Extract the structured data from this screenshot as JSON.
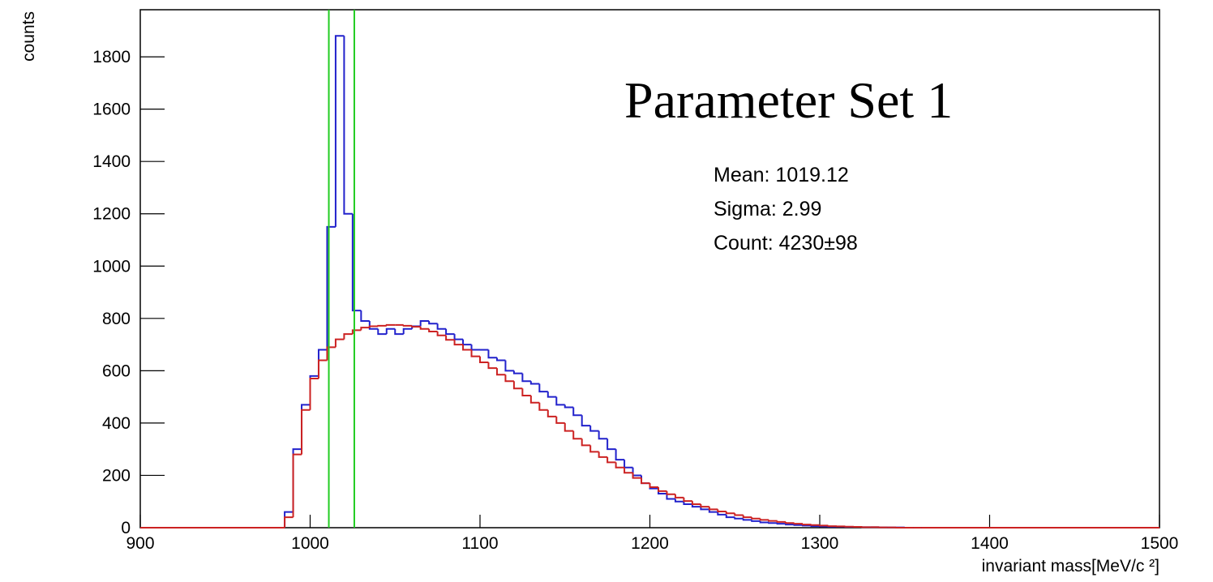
{
  "chart_data": {
    "type": "histogram",
    "title": "Parameter Set 1",
    "annotations": [
      "Mean: 1019.12",
      "Sigma: 2.99",
      "Count: 4230±98"
    ],
    "xlabel": "invariant mass[MeV/c ²]",
    "ylabel": "counts",
    "xlim": [
      900,
      1500
    ],
    "ylim": [
      0,
      1980
    ],
    "xticks": [
      900,
      1000,
      1100,
      1200,
      1300,
      1400,
      1500
    ],
    "yticks": [
      0,
      200,
      400,
      600,
      800,
      1000,
      1200,
      1400,
      1600,
      1800
    ],
    "bins": [
      900,
      985,
      990,
      995,
      1000,
      1005,
      1010,
      1015,
      1020,
      1025,
      1030,
      1035,
      1040,
      1045,
      1050,
      1055,
      1060,
      1065,
      1070,
      1075,
      1080,
      1085,
      1090,
      1095,
      1100,
      1105,
      1110,
      1115,
      1120,
      1125,
      1130,
      1135,
      1140,
      1145,
      1150,
      1155,
      1160,
      1165,
      1170,
      1175,
      1180,
      1185,
      1190,
      1195,
      1200,
      1205,
      1210,
      1215,
      1220,
      1225,
      1230,
      1235,
      1240,
      1245,
      1250,
      1255,
      1260,
      1265,
      1270,
      1275,
      1280,
      1285,
      1290,
      1295,
      1300,
      1305,
      1310,
      1315,
      1320,
      1325,
      1330,
      1335,
      1340,
      1345,
      1350,
      1355,
      1360,
      1500
    ],
    "series": [
      {
        "color": "#2222cc",
        "values": [
          0,
          60,
          300,
          470,
          580,
          680,
          1150,
          1880,
          1200,
          830,
          790,
          760,
          740,
          760,
          740,
          760,
          770,
          790,
          780,
          760,
          740,
          720,
          700,
          680,
          680,
          650,
          640,
          600,
          590,
          560,
          550,
          520,
          500,
          470,
          460,
          430,
          390,
          370,
          340,
          300,
          260,
          230,
          200,
          170,
          150,
          130,
          110,
          100,
          90,
          80,
          70,
          60,
          50,
          40,
          35,
          30,
          25,
          20,
          18,
          15,
          12,
          10,
          8,
          6,
          5,
          4,
          4,
          3,
          3,
          2,
          2,
          1,
          1,
          1,
          0,
          0,
          0
        ]
      },
      {
        "color": "#cc2222",
        "values": [
          0,
          40,
          280,
          450,
          570,
          640,
          690,
          720,
          740,
          755,
          765,
          770,
          772,
          775,
          775,
          772,
          768,
          760,
          750,
          735,
          718,
          700,
          680,
          655,
          632,
          610,
          585,
          560,
          532,
          505,
          478,
          450,
          425,
          400,
          370,
          340,
          315,
          290,
          270,
          250,
          230,
          210,
          190,
          170,
          155,
          140,
          128,
          115,
          102,
          90,
          80,
          70,
          62,
          55,
          48,
          40,
          35,
          30,
          26,
          22,
          18,
          15,
          12,
          10,
          8,
          6,
          5,
          4,
          3,
          2,
          2,
          1,
          1,
          0,
          0,
          0,
          0
        ]
      }
    ],
    "vlines": {
      "color": "#22cc22",
      "x": [
        1011,
        1026
      ]
    }
  }
}
